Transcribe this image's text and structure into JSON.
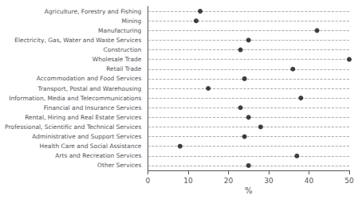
{
  "chart_data": {
    "type": "dot",
    "categories": [
      "Agriculture, Forestry and Fishing",
      "Mining",
      "Manufacturing",
      "Electricity, Gas, Water and Waste Services",
      "Construction",
      "Wholesale Trade",
      "Retail Trade",
      "Accommodation and Food Services",
      "Transport, Postal and Warehousing",
      "Information, Media and Telecommunications",
      "Financial and Insurance Services",
      "Rental, Hiring and Real Estate Services",
      "Professional, Scientific and Technical Services",
      "Administrative and Support Services",
      "Health Care and Social Assistance",
      "Arts and Recreation Services",
      "Other Services"
    ],
    "values": [
      13,
      12,
      42,
      25,
      23,
      50,
      36,
      24,
      15,
      38,
      23,
      25,
      28,
      24,
      8,
      37,
      25
    ],
    "color": "#111111",
    "marker": "circle",
    "xlabel": "%",
    "xlim": [
      0,
      50
    ],
    "xticks": [
      0,
      10,
      20,
      30,
      40,
      50
    ],
    "grid": false
  }
}
